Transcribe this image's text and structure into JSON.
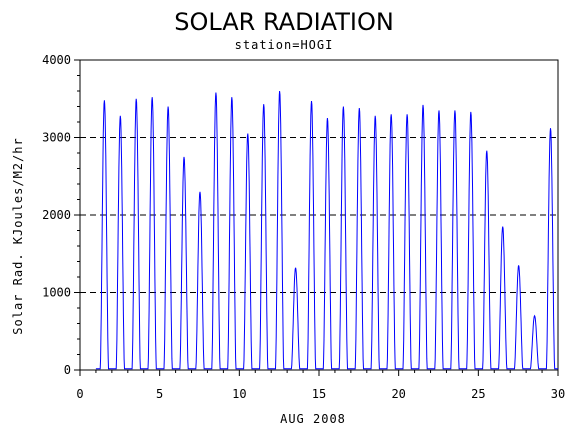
{
  "chart_data": {
    "type": "line",
    "title": "SOLAR RADIATION",
    "subtitle": "station=HOGI",
    "xlabel": "AUG 2008",
    "ylabel": "Solar Rad. KJoules/M2/hr",
    "xlim": [
      0,
      30
    ],
    "ylim": [
      0,
      4000
    ],
    "xticks": [
      0,
      5,
      10,
      15,
      20,
      25,
      30
    ],
    "yticks": [
      0,
      1000,
      2000,
      3000,
      4000
    ],
    "grid": "horizontal-dashed",
    "series_color": "#0000ff",
    "daily_peaks": [
      {
        "day": 1,
        "peak": 3480
      },
      {
        "day": 2,
        "peak": 3280
      },
      {
        "day": 3,
        "peak": 3500
      },
      {
        "day": 4,
        "peak": 3520
      },
      {
        "day": 5,
        "peak": 3400
      },
      {
        "day": 6,
        "peak": 2750
      },
      {
        "day": 7,
        "peak": 2300
      },
      {
        "day": 8,
        "peak": 3580
      },
      {
        "day": 9,
        "peak": 3520
      },
      {
        "day": 10,
        "peak": 3050
      },
      {
        "day": 11,
        "peak": 3430
      },
      {
        "day": 12,
        "peak": 3600
      },
      {
        "day": 13,
        "peak": 1320
      },
      {
        "day": 14,
        "peak": 3470
      },
      {
        "day": 15,
        "peak": 3250
      },
      {
        "day": 16,
        "peak": 3400
      },
      {
        "day": 17,
        "peak": 3380
      },
      {
        "day": 18,
        "peak": 3280
      },
      {
        "day": 19,
        "peak": 3300
      },
      {
        "day": 20,
        "peak": 3300
      },
      {
        "day": 21,
        "peak": 3420
      },
      {
        "day": 22,
        "peak": 3350
      },
      {
        "day": 23,
        "peak": 3350
      },
      {
        "day": 24,
        "peak": 3330
      },
      {
        "day": 25,
        "peak": 2830
      },
      {
        "day": 26,
        "peak": 1850
      },
      {
        "day": 27,
        "peak": 1350
      },
      {
        "day": 28,
        "peak": 700
      },
      {
        "day": 29,
        "peak": 3120
      }
    ]
  }
}
